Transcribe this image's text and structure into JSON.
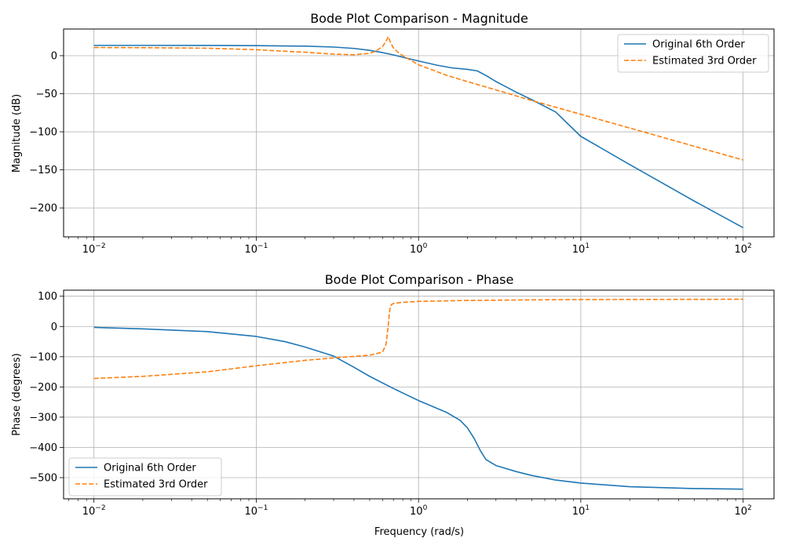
{
  "chart_data": [
    {
      "type": "line",
      "title": "Bode Plot Comparison - Magnitude",
      "xlabel": "",
      "ylabel": "Magnitude (dB)",
      "xscale": "log",
      "xlim": [
        0.0065,
        155
      ],
      "ylim": [
        -238,
        35
      ],
      "xticks": [
        0.01,
        0.1,
        1,
        10,
        100
      ],
      "xtick_labels": [
        {
          "base": "10",
          "exp": "−2"
        },
        {
          "base": "10",
          "exp": "−1"
        },
        {
          "base": "10",
          "exp": "0"
        },
        {
          "base": "10",
          "exp": "1"
        },
        {
          "base": "10",
          "exp": "2"
        }
      ],
      "yticks": [
        0,
        -50,
        -100,
        -150,
        -200
      ],
      "ytick_labels": [
        "0",
        "−50",
        "−100",
        "−150",
        "−200"
      ],
      "grid": true,
      "legend_position": "top-right",
      "series": [
        {
          "name": "Original 6th Order",
          "color": "#1f77b4",
          "style": "solid",
          "x": [
            0.01,
            0.02,
            0.05,
            0.1,
            0.2,
            0.3,
            0.4,
            0.5,
            0.6,
            0.7,
            0.8,
            1.0,
            1.3,
            1.6,
            2.0,
            2.3,
            2.6,
            3.0,
            4.0,
            5.0,
            7.0,
            10,
            20,
            50,
            100
          ],
          "y": [
            13.5,
            13.5,
            13.4,
            13.2,
            12.5,
            11.3,
            9.5,
            7.0,
            4.0,
            1.0,
            -2.0,
            -7.0,
            -12.5,
            -16.0,
            -18.0,
            -20.0,
            -26.0,
            -34.0,
            -48.0,
            -58.0,
            -74.0,
            -106,
            -143,
            -191,
            -226
          ]
        },
        {
          "name": "Estimated 3rd Order",
          "color": "#ff7f0e",
          "style": "dashed",
          "x": [
            0.01,
            0.02,
            0.05,
            0.1,
            0.2,
            0.3,
            0.4,
            0.5,
            0.55,
            0.6,
            0.63,
            0.65,
            0.67,
            0.7,
            0.75,
            0.8,
            1.0,
            1.5,
            2.0,
            3.0,
            5.0,
            10,
            20,
            50,
            100
          ],
          "y": [
            10.7,
            10.5,
            9.8,
            7.8,
            4.5,
            2.0,
            1.2,
            3.0,
            6.5,
            12.0,
            18.5,
            25.0,
            18.0,
            10.0,
            4.0,
            0.0,
            -12.0,
            -26.0,
            -34.0,
            -45.0,
            -59.0,
            -77.0,
            -95.0,
            -119.0,
            -137.0
          ]
        }
      ]
    },
    {
      "type": "line",
      "title": "Bode Plot Comparison - Phase",
      "xlabel": "Frequency (rad/s)",
      "ylabel": "Phase (degrees)",
      "xscale": "log",
      "xlim": [
        0.0065,
        155
      ],
      "ylim": [
        -570,
        120
      ],
      "xticks": [
        0.01,
        0.1,
        1,
        10,
        100
      ],
      "xtick_labels": [
        {
          "base": "10",
          "exp": "−2"
        },
        {
          "base": "10",
          "exp": "−1"
        },
        {
          "base": "10",
          "exp": "0"
        },
        {
          "base": "10",
          "exp": "1"
        },
        {
          "base": "10",
          "exp": "2"
        }
      ],
      "yticks": [
        100,
        0,
        -100,
        -200,
        -300,
        -400,
        -500
      ],
      "ytick_labels": [
        "100",
        "0",
        "−100",
        "−200",
        "−300",
        "−400",
        "−500"
      ],
      "grid": true,
      "legend_position": "bottom-left",
      "series": [
        {
          "name": "Original 6th Order",
          "color": "#1f77b4",
          "style": "solid",
          "x": [
            0.01,
            0.02,
            0.05,
            0.1,
            0.15,
            0.2,
            0.3,
            0.4,
            0.5,
            0.7,
            1.0,
            1.5,
            1.8,
            2.0,
            2.2,
            2.4,
            2.6,
            3.0,
            4.0,
            5.0,
            7.0,
            10,
            20,
            50,
            100
          ],
          "y": [
            -3,
            -8,
            -17,
            -33,
            -50,
            -68,
            -98,
            -135,
            -165,
            -205,
            -245,
            -285,
            -310,
            -335,
            -370,
            -410,
            -440,
            -460,
            -480,
            -493,
            -508,
            -518,
            -530,
            -536,
            -538
          ]
        },
        {
          "name": "Estimated 3rd Order",
          "color": "#ff7f0e",
          "style": "dashed",
          "x": [
            0.01,
            0.02,
            0.05,
            0.1,
            0.2,
            0.3,
            0.4,
            0.5,
            0.6,
            0.63,
            0.65,
            0.66,
            0.67,
            0.68,
            0.7,
            0.8,
            1.0,
            2.0,
            5.0,
            10,
            100
          ],
          "y": [
            -172,
            -165,
            -150,
            -130,
            -112,
            -104,
            -99,
            -95,
            -85,
            -60,
            0,
            40,
            65,
            72,
            76,
            80,
            83,
            86,
            88,
            89,
            90
          ]
        }
      ]
    }
  ]
}
